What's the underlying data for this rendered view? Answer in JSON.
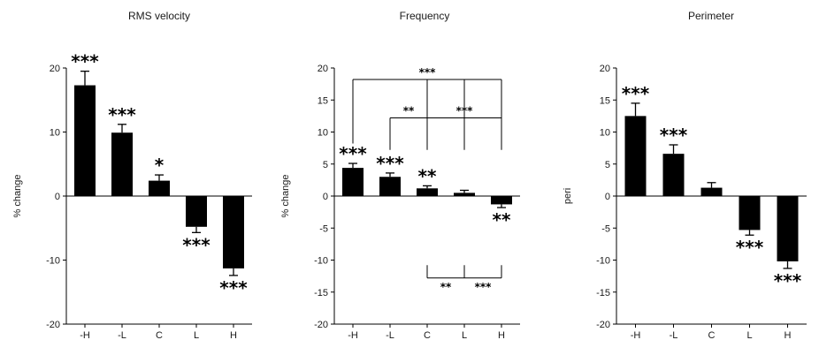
{
  "chart_data": [
    {
      "type": "bar",
      "title": "RMS velocity",
      "ylabel": "% change",
      "xlabel": "",
      "categories": [
        "-H",
        "-L",
        "C",
        "L",
        "H"
      ],
      "values": [
        17.3,
        9.9,
        2.4,
        -4.8,
        -11.3
      ],
      "errors": [
        2.2,
        1.3,
        0.9,
        0.9,
        1.1
      ],
      "significance": [
        "***",
        "***",
        "*",
        "***",
        "***"
      ],
      "ylim": [
        -20,
        20
      ],
      "yticks": [
        "20",
        "10",
        "0",
        "-10",
        "-20"
      ],
      "ytick_values": [
        20,
        10,
        0,
        -10,
        -20
      ],
      "brackets": []
    },
    {
      "type": "bar",
      "title": "Frequency",
      "ylabel": "% change",
      "xlabel": "",
      "categories": [
        "-H",
        "-L",
        "C",
        "L",
        "H"
      ],
      "values": [
        4.4,
        3.0,
        1.2,
        0.5,
        -1.3
      ],
      "errors": [
        0.7,
        0.6,
        0.4,
        0.4,
        0.5
      ],
      "significance": [
        "***",
        "***",
        "**",
        "",
        "**"
      ],
      "ylim": [
        -20,
        20
      ],
      "yticks": [
        "20",
        "15",
        "10",
        "5",
        "0",
        "-5",
        "-10",
        "-15",
        "-20"
      ],
      "ytick_values": [
        20,
        15,
        10,
        5,
        0,
        -5,
        -10,
        -15,
        -20
      ],
      "brackets": [
        {
          "from": 0,
          "to": 4,
          "y": 18.2,
          "drop": 10.0,
          "dir": "down",
          "drops": [
            0,
            2,
            3,
            4
          ],
          "labels": [
            {
              "text": "***",
              "between": [
                1,
                3
              ]
            }
          ]
        },
        {
          "from": 1,
          "to": 4,
          "y": 12.2,
          "drop": 5.0,
          "dir": "down",
          "drops": [
            1,
            2,
            3,
            4
          ],
          "labels": [
            {
              "text": "**",
              "between": [
                1,
                2
              ]
            },
            {
              "text": "***",
              "between": [
                2.6,
                3.4
              ]
            }
          ]
        },
        {
          "from": 2,
          "to": 4,
          "y": -12.8,
          "drop": 2.0,
          "dir": "up",
          "drops": [
            2,
            3,
            4
          ],
          "labels": [
            {
              "text": "**",
              "between": [
                2,
                3
              ]
            },
            {
              "text": "***",
              "between": [
                3,
                4
              ]
            }
          ]
        }
      ]
    },
    {
      "type": "bar",
      "title": "Perimeter",
      "ylabel": "peri",
      "xlabel": "",
      "categories": [
        "-H",
        "-L",
        "C",
        "L",
        "H"
      ],
      "values": [
        12.5,
        6.6,
        1.3,
        -5.3,
        -10.2
      ],
      "errors": [
        2.0,
        1.4,
        0.8,
        0.8,
        1.1
      ],
      "significance": [
        "***",
        "***",
        "",
        "***",
        "***"
      ],
      "ylim": [
        -20,
        20
      ],
      "yticks": [
        "20",
        "15",
        "10",
        "5",
        "0",
        "-5",
        "-10",
        "-15",
        "-20"
      ],
      "ytick_values": [
        20,
        15,
        10,
        5,
        0,
        -5,
        -10,
        -15,
        -20
      ],
      "brackets": []
    }
  ]
}
